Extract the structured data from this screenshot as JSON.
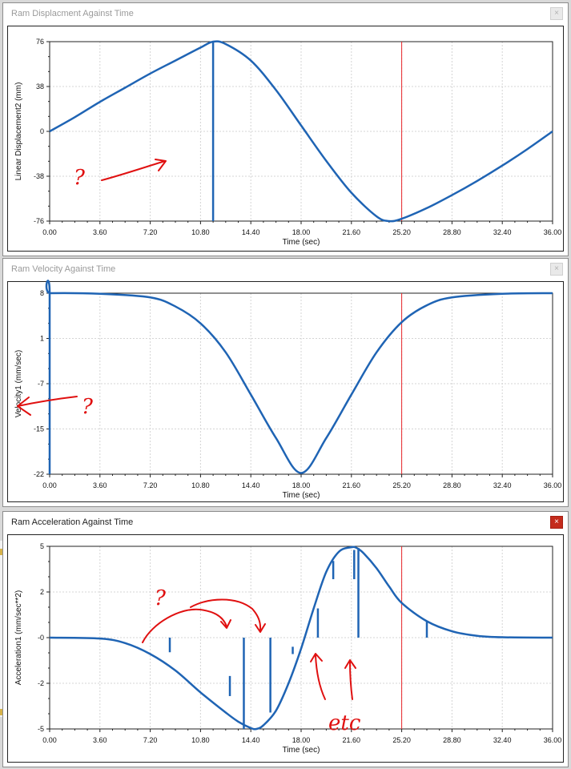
{
  "windows": [
    {
      "title": "Ram Displacment Against Time",
      "active": false,
      "close_glyph": "×",
      "chart": {
        "ylabel": "Linear Displacement2 (mm)",
        "xlabel": "Time (sec)",
        "yticks": [
          "76",
          "38",
          "0",
          "-38",
          "-76"
        ],
        "xticks": [
          "0.00",
          "3.60",
          "7.20",
          "10.80",
          "14.40",
          "18.00",
          "21.60",
          "25.20",
          "28.80",
          "32.40",
          "36.00"
        ],
        "annotation_text": "?"
      }
    },
    {
      "title": "Ram Velocity Against Time",
      "active": false,
      "close_glyph": "×",
      "chart": {
        "ylabel": "Velocity1  (mm/sec)",
        "xlabel": "Time (sec)",
        "yticks": [
          "8",
          "1",
          "-7",
          "-15",
          "-22"
        ],
        "xticks": [
          "0.00",
          "3.60",
          "7.20",
          "10.80",
          "14.40",
          "18.00",
          "21.60",
          "25.20",
          "28.80",
          "32.40",
          "36.00"
        ],
        "annotation_text": "?"
      }
    },
    {
      "title": "Ram Acceleration Against Time",
      "active": true,
      "close_glyph": "×",
      "chart": {
        "ylabel": "Acceleration1  (mm/sec**2)",
        "xlabel": "Time (sec)",
        "yticks": [
          "5",
          "2",
          "-0",
          "-2",
          "-5"
        ],
        "xticks": [
          "0.00",
          "3.60",
          "7.20",
          "10.80",
          "14.40",
          "18.00",
          "21.60",
          "25.20",
          "28.80",
          "32.40",
          "36.00"
        ],
        "annotation_text": "?",
        "annotation_text_2": "etc"
      }
    }
  ],
  "chart_data": [
    {
      "type": "line",
      "title": "Ram Displacment Against Time",
      "xlabel": "Time (sec)",
      "ylabel": "Linear Displacement2 (mm)",
      "xlim": [
        0,
        36
      ],
      "ylim": [
        -76,
        76
      ],
      "grid": true,
      "series": [
        {
          "x": [
            0,
            1.8,
            3.6,
            5.4,
            7.2,
            9.0,
            10.8,
            11.7,
            12.6,
            14.4,
            16.2,
            18.0,
            19.8,
            21.6,
            23.4,
            24.3,
            25.2,
            27.0,
            28.8,
            30.6,
            32.4,
            34.2,
            36.0
          ],
          "y": [
            0,
            12,
            25,
            37,
            49,
            60,
            71,
            76,
            74,
            60,
            35,
            5,
            -25,
            -52,
            -72,
            -76,
            -74,
            -65,
            -54,
            -42,
            -29,
            -15,
            0
          ]
        },
        {
          "x": [
            11.7,
            11.7
          ],
          "y": [
            -76,
            76
          ]
        }
      ],
      "marker_x": 25.2,
      "marker_color": "#e8262a",
      "line_color": "#1f64b4"
    },
    {
      "type": "line",
      "title": "Ram Velocity Against Time",
      "xlabel": "Time (sec)",
      "ylabel": "Velocity1  (mm/sec)",
      "xlim": [
        0,
        36
      ],
      "ylim": [
        -22,
        8
      ],
      "grid": true,
      "series": [
        {
          "x": [
            0,
            0,
            0.05,
            3.6,
            7.2,
            9.0,
            10.8,
            12.6,
            14.4,
            16.2,
            18.0,
            19.8,
            21.6,
            23.4,
            25.2,
            27.0,
            28.8,
            32.4,
            36.0
          ],
          "y": [
            -22,
            7.8,
            8.0,
            7.9,
            7.3,
            5.8,
            3.0,
            -1.8,
            -8.8,
            -16.0,
            -21.8,
            -16.0,
            -8.8,
            -1.8,
            3.2,
            6.0,
            7.3,
            7.9,
            8.0
          ]
        }
      ],
      "marker_x": 25.2,
      "marker_color": "#e8262a",
      "line_color": "#1f64b4"
    },
    {
      "type": "line",
      "title": "Ram Acceleration Against Time",
      "xlabel": "Time (sec)",
      "ylabel": "Acceleration1  (mm/sec**2)",
      "xlim": [
        0,
        36
      ],
      "ylim": [
        -5,
        5
      ],
      "grid": true,
      "series": [
        {
          "x": [
            0,
            3.6,
            5.4,
            7.2,
            9.0,
            10.8,
            12.6,
            13.5,
            14.4,
            14.8,
            15.3,
            16.2,
            17.1,
            18.0,
            18.9,
            19.8,
            20.7,
            21.6,
            22.0,
            22.5,
            23.4,
            24.3,
            25.2,
            27.0,
            28.8,
            30.6,
            32.4,
            36.0
          ],
          "y": [
            0,
            -0.05,
            -0.3,
            -0.9,
            -1.8,
            -3.0,
            -4.1,
            -4.6,
            -4.95,
            -5.0,
            -4.8,
            -4.0,
            -2.5,
            -0.6,
            1.6,
            3.6,
            4.7,
            4.95,
            4.9,
            4.6,
            3.8,
            2.8,
            1.9,
            0.9,
            0.35,
            0.1,
            0.02,
            0
          ]
        },
        {
          "spikes": [
            {
              "x": 8.6,
              "y0": -0.8,
              "y1": 0
            },
            {
              "x": 12.9,
              "y0": -3.2,
              "y1": -2.1
            },
            {
              "x": 13.9,
              "y0": -5,
              "y1": 0
            },
            {
              "x": 15.8,
              "y0": -4.1,
              "y1": 0
            },
            {
              "x": 17.4,
              "y0": -0.9,
              "y1": -0.5
            },
            {
              "x": 19.2,
              "y0": 0,
              "y1": 1.6
            },
            {
              "x": 20.3,
              "y0": 4.2,
              "y1": 3.2
            },
            {
              "x": 21.8,
              "y0": 4.8,
              "y1": 3.2
            },
            {
              "x": 22.1,
              "y0": 4.9,
              "y1": 0
            },
            {
              "x": 27.0,
              "y0": 0,
              "y1": 0.9
            }
          ]
        }
      ],
      "marker_x": 25.2,
      "marker_color": "#e8262a",
      "line_color": "#1f64b4"
    }
  ]
}
